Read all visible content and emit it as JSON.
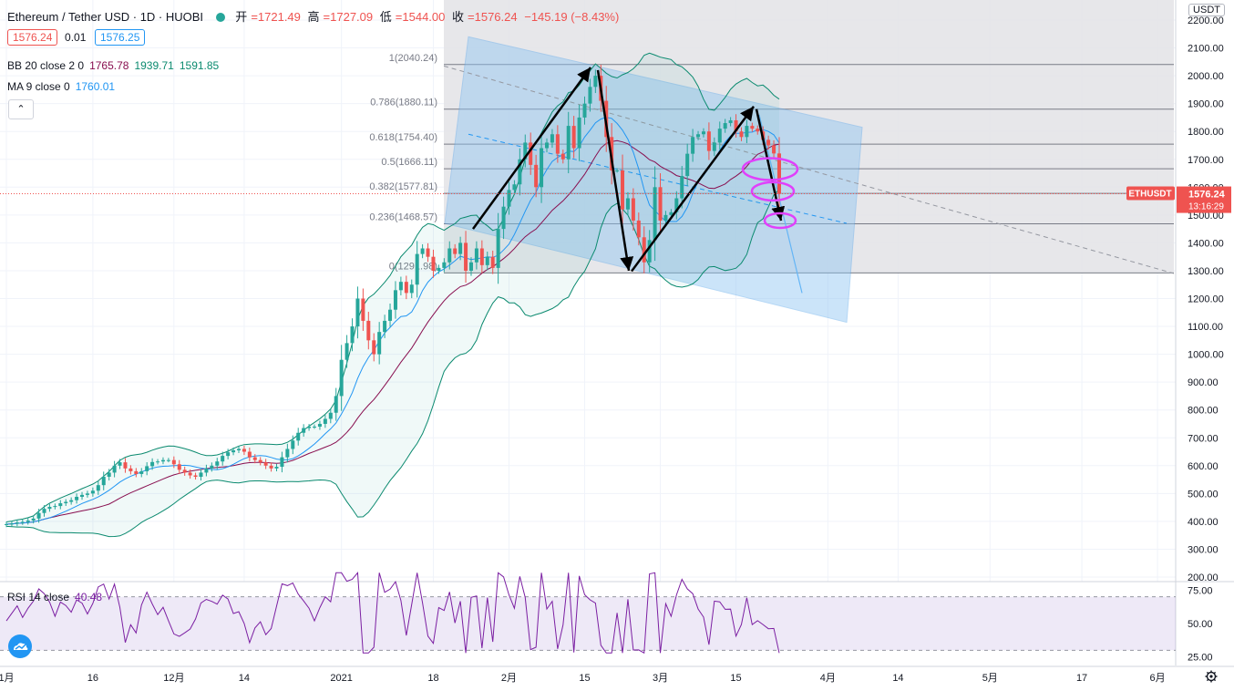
{
  "header": {
    "symbol": "Ethereum / Tether USD · 1D · HUOBI",
    "open_label": "开",
    "open": "=1721.49",
    "high_label": "高",
    "high": "=1727.09",
    "low_label": "低",
    "low": "=1544.00",
    "close_label": "收",
    "close": "=1576.24",
    "change": "−145.19 (−8.43%)",
    "sell": "1576.24",
    "spread": "0.01",
    "buy": "1576.25"
  },
  "indicators": {
    "bb_label": "BB 20 close 2 0",
    "bb_mid": "1765.78",
    "bb_upper": "1939.71",
    "bb_lower": "1591.85",
    "ma_label": "MA 9 close 0",
    "ma_value": "1760.01",
    "rsi_label": "RSI 14 close",
    "rsi_value": "40.48"
  },
  "currency": "USDT",
  "price_tag": {
    "label": "ETHUSDT",
    "price": "1576.24",
    "countdown": "13:16:29"
  },
  "colors": {
    "up": "#26a69a",
    "down": "#ef5350",
    "bb": "#0b8a6f",
    "ma": "#2196f3",
    "rsi": "#7b1fa2",
    "fib_fill": "#e3e3e6",
    "channel": "#8ec4f2",
    "marker": "#e040fb"
  },
  "chart_data": {
    "type": "candlestick",
    "y_axis": {
      "min": 200,
      "max": 2200,
      "ticks": [
        "2200.00",
        "2100.00",
        "2000.00",
        "1900.00",
        "1800.00",
        "1700.00",
        "1600.00",
        "1500.00",
        "1400.00",
        "1300.00",
        "1200.00",
        "1100.00",
        "1000.00",
        "900.00",
        "800.00",
        "700.00",
        "600.00",
        "500.00",
        "400.00",
        "300.00",
        "200.00"
      ]
    },
    "x_axis": {
      "ticks": [
        {
          "label": "1月",
          "day": 0
        },
        {
          "label": "16",
          "day": 16
        },
        {
          "label": "12月",
          "day": 31
        },
        {
          "label": "14",
          "day": 44
        },
        {
          "label": "2021",
          "day": 62
        },
        {
          "label": "18",
          "day": 79
        },
        {
          "label": "2月",
          "day": 93
        },
        {
          "label": "15",
          "day": 107
        },
        {
          "label": "3月",
          "day": 121
        },
        {
          "label": "15",
          "day": 135
        },
        {
          "label": "4月",
          "day": 152
        },
        {
          "label": "14",
          "day": 165
        },
        {
          "label": "5月",
          "day": 182
        },
        {
          "label": "17",
          "day": 199
        },
        {
          "label": "6月",
          "day": 213
        }
      ]
    },
    "fibonacci": [
      {
        "ratio": "1",
        "price": 2040.24,
        "label": "1(2040.24)"
      },
      {
        "ratio": "0.786",
        "price": 1880.11,
        "label": "0.786(1880.11)"
      },
      {
        "ratio": "0.618",
        "price": 1754.4,
        "label": "0.618(1754.40)"
      },
      {
        "ratio": "0.5",
        "price": 1666.11,
        "label": "0.5(1666.11)"
      },
      {
        "ratio": "0.382",
        "price": 1577.81,
        "label": "0.382(1577.81)"
      },
      {
        "ratio": "0.236",
        "price": 1468.57,
        "label": "0.236(1468.57)"
      },
      {
        "ratio": "0",
        "price": 1291.98,
        "label": "0(1291.98)"
      }
    ],
    "closes": [
      390,
      392,
      396,
      398,
      403,
      410,
      430,
      445,
      452,
      455,
      465,
      470,
      476,
      488,
      495,
      500,
      510,
      530,
      560,
      575,
      600,
      612,
      590,
      580,
      570,
      580,
      598,
      613,
      615,
      620,
      620,
      605,
      585,
      575,
      565,
      560,
      575,
      590,
      600,
      615,
      635,
      648,
      655,
      660,
      650,
      630,
      620,
      612,
      600,
      590,
      596,
      630,
      660,
      690,
      718,
      735,
      740,
      740,
      750,
      768,
      790,
      850,
      980,
      1040,
      1100,
      1200,
      1120,
      1050,
      1000,
      1080,
      1120,
      1160,
      1230,
      1260,
      1220,
      1250,
      1360,
      1380,
      1350,
      1300,
      1310,
      1330,
      1380,
      1360,
      1400,
      1300,
      1330,
      1380,
      1320,
      1350,
      1310,
      1450,
      1530,
      1590,
      1610,
      1700,
      1760,
      1680,
      1600,
      1740,
      1760,
      1790,
      1720,
      1700,
      1820,
      1740,
      1850,
      1900,
      1960,
      2000,
      1910,
      1780,
      1660,
      1660,
      1520,
      1560,
      1480,
      1420,
      1330,
      1410,
      1600,
      1480,
      1500,
      1510,
      1560,
      1640,
      1720,
      1780,
      1790,
      1800,
      1730,
      1760,
      1810,
      1830,
      1840,
      1800,
      1780,
      1820,
      1810,
      1800,
      1770,
      1750,
      1721,
      1576
    ],
    "rsi": {
      "min": 25,
      "max": 75,
      "ticks": [
        "75.00",
        "50.00",
        "25.00"
      ]
    }
  }
}
